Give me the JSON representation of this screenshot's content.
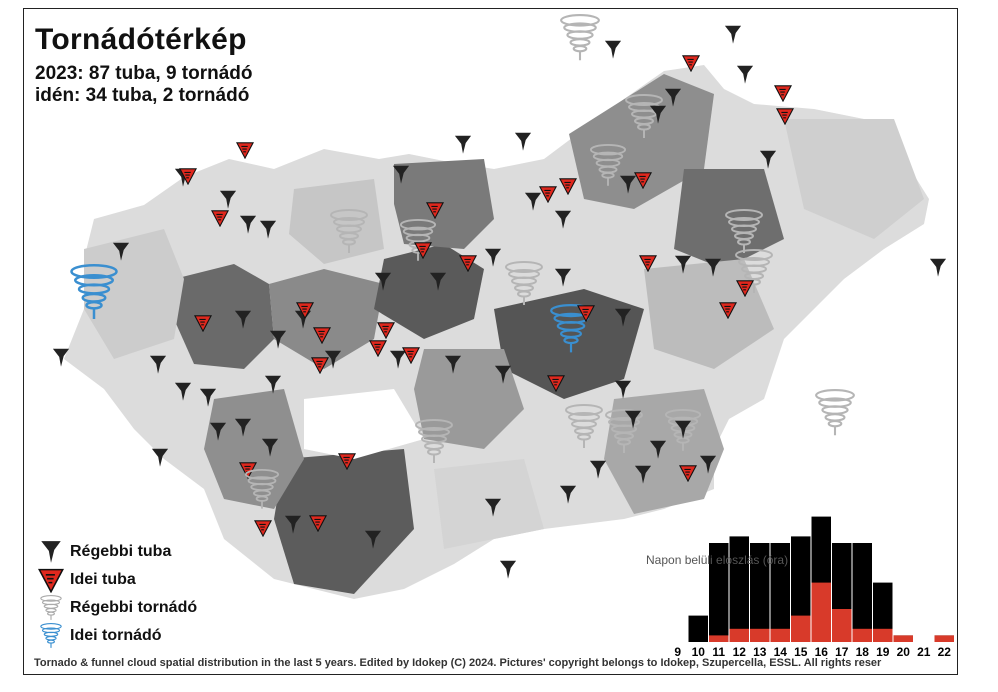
{
  "title": "Tornádótérkép",
  "stats": {
    "line1": "2023: 87 tuba, 9 tornádó",
    "line2": "idén: 34 tuba, 2 tornádó"
  },
  "legend": [
    {
      "label": "Régebbi tuba",
      "icon": "old-funnel-icon",
      "color": "#222222"
    },
    {
      "label": "Idei tuba",
      "icon": "new-funnel-icon",
      "color": "#e0281e"
    },
    {
      "label": "Régebbi tornádó",
      "icon": "old-tornado-icon",
      "color": "#bbbbbb"
    },
    {
      "label": "Idei tornádó",
      "icon": "new-tornado-icon",
      "color": "#3a8fd0"
    }
  ],
  "histogram": {
    "title": "Napon belüli eloszlás (óra)",
    "hours": [
      "9",
      "10",
      "11",
      "12",
      "13",
      "14",
      "15",
      "16",
      "17",
      "18",
      "19",
      "20",
      "21",
      "22"
    ],
    "total": [
      0,
      4,
      15,
      16,
      15,
      15,
      16,
      19,
      15,
      15,
      9,
      1,
      0,
      1
    ],
    "this_year": [
      0,
      0,
      1,
      2,
      2,
      2,
      4,
      9,
      5,
      2,
      2,
      1,
      0,
      1
    ],
    "colors": {
      "total": "#000000",
      "this_year": "#d83a2a"
    }
  },
  "footer": "Tornado & funnel cloud spatial distribution in the last 5 years. Edited by Idokep (C) 2024. Pictures' copyright belongs to Idokep, Szupercella, ESSL. All rights reser"
}
